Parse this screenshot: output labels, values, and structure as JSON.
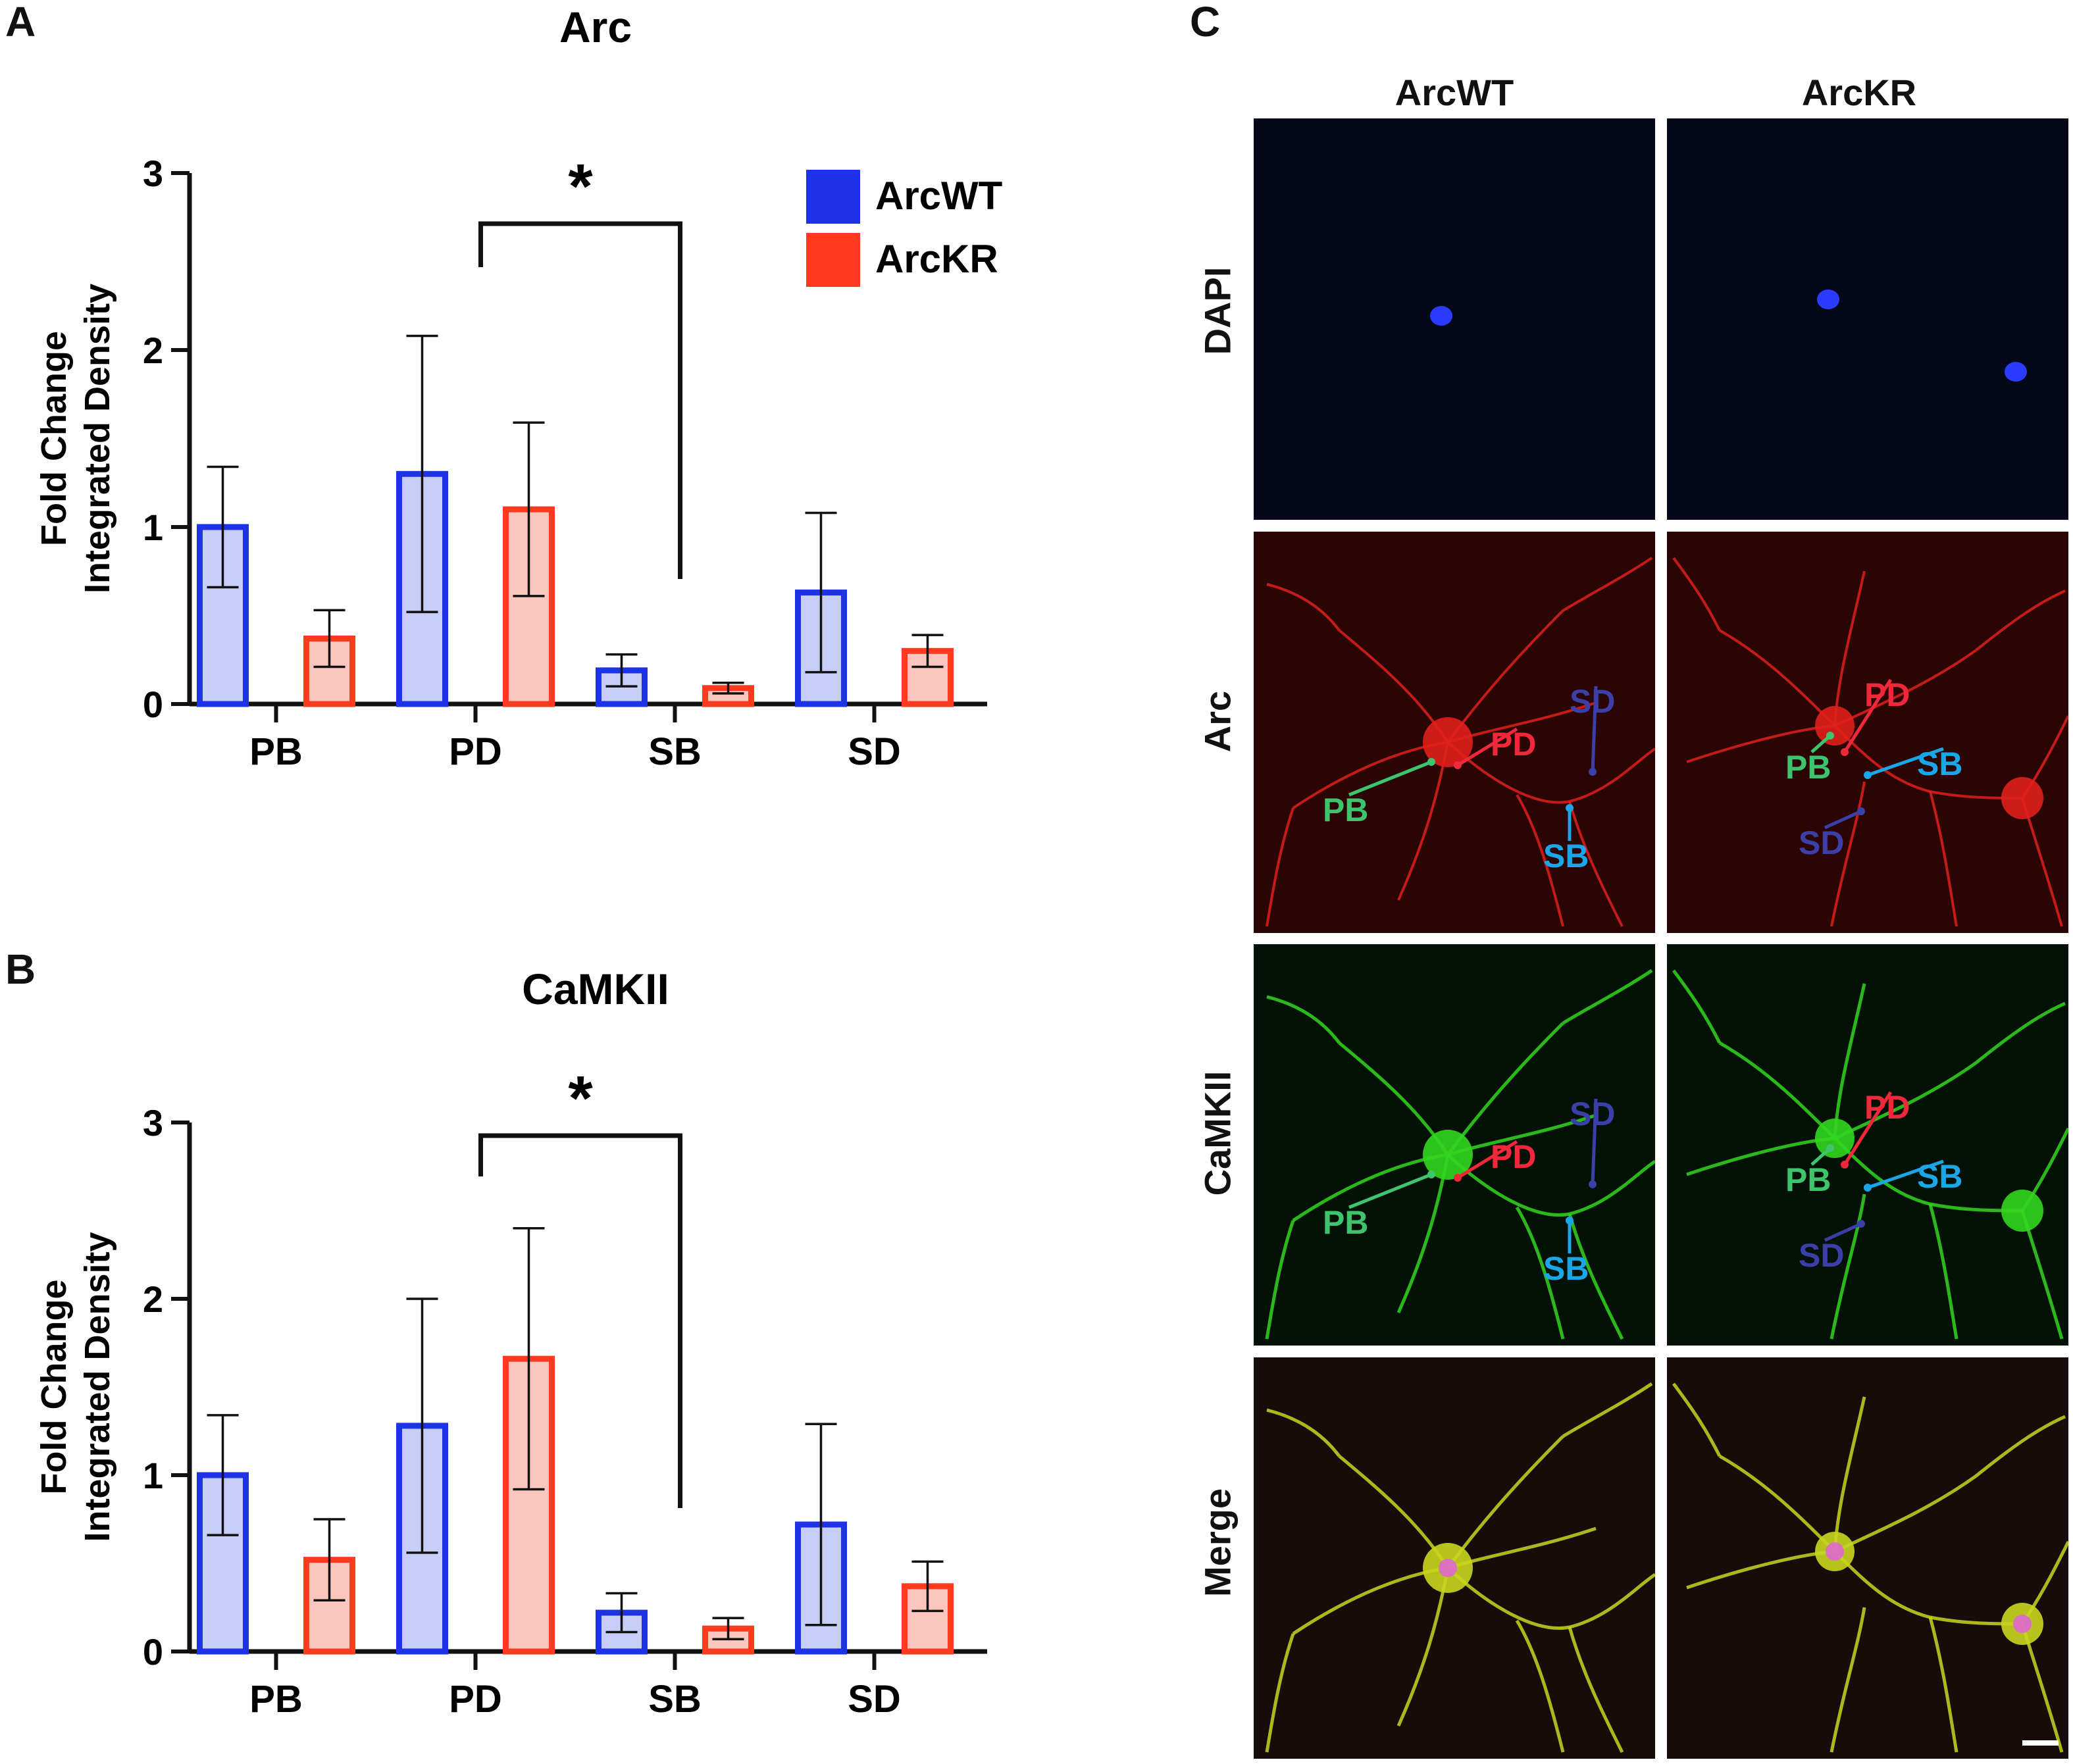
{
  "panels": {
    "a": {
      "letter": "A"
    },
    "b": {
      "letter": "B"
    },
    "c": {
      "letter": "C"
    }
  },
  "colors": {
    "arcwt_stroke": "#1f33e6",
    "arcwt_fill": "#c6cdf7",
    "arckr_stroke": "#ff3a1f",
    "arckr_fill": "#fbc6bd",
    "axis": "#111111"
  },
  "legend": {
    "items": [
      {
        "label": "ArcWT",
        "color": "#1f33e6"
      },
      {
        "label": "ArcKR",
        "color": "#ff3a1f"
      }
    ]
  },
  "chart_data": [
    {
      "type": "bar",
      "title": "Arc",
      "ylabel_line1": "Fold Change",
      "ylabel_line2": "Integrated Density",
      "categories": [
        "PB",
        "PD",
        "SB",
        "SD"
      ],
      "ylim": [
        0,
        3
      ],
      "yticks": [
        "0",
        "1",
        "2",
        "3"
      ],
      "series": [
        {
          "name": "ArcWT",
          "values": [
            1.0,
            1.3,
            0.19,
            0.63
          ],
          "errors": [
            0.34,
            0.78,
            0.09,
            0.45
          ]
        },
        {
          "name": "ArcKR",
          "values": [
            0.37,
            1.1,
            0.09,
            0.3
          ],
          "errors": [
            0.16,
            0.49,
            0.03,
            0.09
          ]
        }
      ],
      "significance": {
        "label": "*",
        "from": "PD",
        "to": "SB"
      }
    },
    {
      "type": "bar",
      "title": "CaMKII",
      "ylabel_line1": "Fold Change",
      "ylabel_line2": "Integrated Density",
      "categories": [
        "PB",
        "PD",
        "SB",
        "SD"
      ],
      "ylim": [
        0,
        3
      ],
      "yticks": [
        "0",
        "1",
        "2",
        "3"
      ],
      "series": [
        {
          "name": "ArcWT",
          "values": [
            1.0,
            1.28,
            0.22,
            0.72
          ],
          "errors": [
            0.34,
            0.72,
            0.11,
            0.57
          ]
        },
        {
          "name": "ArcKR",
          "values": [
            0.52,
            1.66,
            0.13,
            0.37
          ],
          "errors": [
            0.23,
            0.74,
            0.06,
            0.14
          ]
        }
      ],
      "significance": {
        "label": "*",
        "from": "PD",
        "to": "SB"
      }
    }
  ],
  "micrographs": {
    "columns": [
      "ArcWT",
      "ArcKR"
    ],
    "rows": [
      "DAPI",
      "Arc",
      "CaMKII",
      "Merge"
    ],
    "annotations": {
      "PB": "PB",
      "PD": "PD",
      "SB": "SB",
      "SD": "SD"
    },
    "annotation_colors": {
      "PB": "#3ec46d",
      "PD": "#f0283a",
      "SB": "#1ba6e8",
      "SD": "#3b3fa8"
    },
    "channel_colors": {
      "DAPI": "#2a3cff",
      "Arc": "#e0201c",
      "CaMKII": "#33d61f",
      "Merge": "#c9d61f"
    }
  }
}
